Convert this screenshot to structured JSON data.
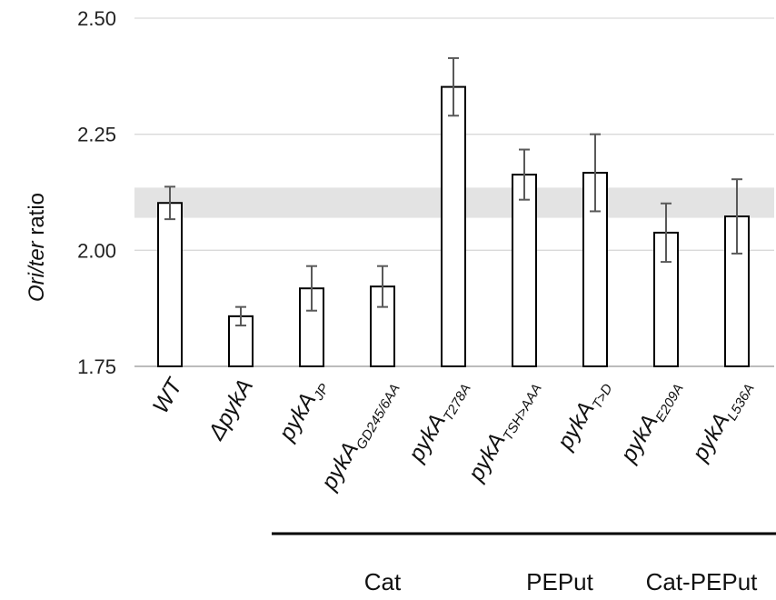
{
  "chart_data": {
    "type": "bar",
    "ylabel": {
      "prefix": "Ori",
      "sep": "/",
      "mid": "ter",
      "suffix": " ratio"
    },
    "ylim": [
      1.75,
      2.5
    ],
    "yticks": [
      "1.75",
      "2.00",
      "2.25",
      "2.50"
    ],
    "ytick_values": [
      1.75,
      2.0,
      2.25,
      2.5
    ],
    "grid": true,
    "band": [
      2.07,
      2.135
    ],
    "categories": [
      {
        "main": "WT",
        "sub": ""
      },
      {
        "main": "ΔpykA",
        "sub": ""
      },
      {
        "main": "pykA",
        "sub": "JP"
      },
      {
        "main": "pykA",
        "sub": "GD245/6AA"
      },
      {
        "main": "pykA",
        "sub": "T278A"
      },
      {
        "main": "pykA",
        "sub": "TSH>AAA"
      },
      {
        "main": "pykA",
        "sub": "T>D"
      },
      {
        "main": "pykA",
        "sub": "E209A"
      },
      {
        "main": "pykA",
        "sub": "L536A"
      }
    ],
    "values": [
      2.102,
      1.858,
      1.918,
      1.922,
      2.352,
      2.163,
      2.167,
      2.038,
      2.073
    ],
    "errors": [
      0.035,
      0.02,
      0.048,
      0.044,
      0.062,
      0.054,
      0.083,
      0.063,
      0.08
    ],
    "groups": [
      {
        "label": "Cat",
        "from": 2,
        "to": 4
      },
      {
        "label": "PEPut",
        "from": 5,
        "to": 6
      },
      {
        "label": "Cat-PEPut",
        "from": 7,
        "to": 8
      }
    ]
  }
}
